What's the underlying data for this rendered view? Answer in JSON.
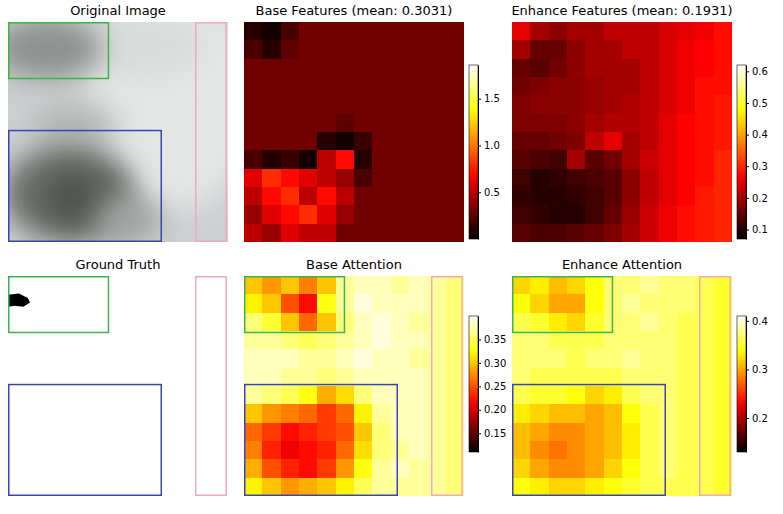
{
  "chart_data": [
    {
      "type": "image",
      "title": "Original Image"
    },
    {
      "type": "heatmap",
      "title": "Base Features (mean: 0.3031)",
      "cells": [
        [
          0.1,
          0.05,
          0.2,
          0.3,
          0.3,
          0.3,
          0.3,
          0.3,
          0.3,
          0.3,
          0.3,
          0.3
        ],
        [
          0.2,
          0.1,
          0.25,
          0.3,
          0.3,
          0.3,
          0.3,
          0.3,
          0.3,
          0.3,
          0.3,
          0.3
        ],
        [
          0.3,
          0.3,
          0.3,
          0.3,
          0.3,
          0.3,
          0.3,
          0.3,
          0.3,
          0.3,
          0.3,
          0.3
        ],
        [
          0.3,
          0.3,
          0.3,
          0.3,
          0.3,
          0.3,
          0.3,
          0.3,
          0.3,
          0.3,
          0.3,
          0.3
        ],
        [
          0.3,
          0.3,
          0.3,
          0.3,
          0.3,
          0.3,
          0.3,
          0.3,
          0.3,
          0.3,
          0.3,
          0.3
        ],
        [
          0.3,
          0.3,
          0.3,
          0.3,
          0.3,
          0.25,
          0.3,
          0.3,
          0.3,
          0.3,
          0.3,
          0.3
        ],
        [
          0.3,
          0.3,
          0.3,
          0.3,
          0.1,
          0.05,
          0.15,
          0.3,
          0.3,
          0.3,
          0.3,
          0.3
        ],
        [
          0.2,
          0.1,
          0.15,
          0.05,
          0.5,
          0.7,
          0.1,
          0.3,
          0.3,
          0.3,
          0.3,
          0.3
        ],
        [
          0.6,
          0.8,
          0.7,
          0.6,
          0.5,
          0.4,
          0.2,
          0.3,
          0.3,
          0.3,
          0.3,
          0.3
        ],
        [
          0.5,
          0.7,
          0.8,
          0.5,
          0.7,
          0.5,
          0.3,
          0.3,
          0.3,
          0.3,
          0.3,
          0.3
        ],
        [
          0.4,
          0.6,
          0.7,
          0.8,
          0.6,
          0.4,
          0.3,
          0.3,
          0.3,
          0.3,
          0.3,
          0.3
        ],
        [
          0.5,
          0.4,
          0.6,
          0.5,
          0.5,
          0.3,
          0.3,
          0.3,
          0.3,
          0.3,
          0.3,
          0.3
        ]
      ],
      "colorbar_range": [
        0,
        1.86
      ],
      "colorbar_ticks": [
        0.5,
        {
          "value": 1,
          "label": "1.0"
        },
        1.5
      ]
    },
    {
      "type": "heatmap",
      "title": "Enhance Features (mean: 0.1931)",
      "cells": [
        [
          0.25,
          0.2,
          0.18,
          0.2,
          0.2,
          0.22,
          0.22,
          0.22,
          0.24,
          0.25,
          0.26,
          0.28
        ],
        [
          0.2,
          0.15,
          0.15,
          0.18,
          0.2,
          0.2,
          0.22,
          0.22,
          0.24,
          0.26,
          0.27,
          0.28
        ],
        [
          0.15,
          0.14,
          0.16,
          0.18,
          0.2,
          0.2,
          0.2,
          0.22,
          0.24,
          0.26,
          0.27,
          0.28
        ],
        [
          0.16,
          0.17,
          0.18,
          0.18,
          0.19,
          0.2,
          0.2,
          0.22,
          0.24,
          0.26,
          0.28,
          0.28
        ],
        [
          0.17,
          0.18,
          0.18,
          0.18,
          0.19,
          0.2,
          0.21,
          0.22,
          0.24,
          0.26,
          0.28,
          0.29
        ],
        [
          0.17,
          0.17,
          0.17,
          0.18,
          0.2,
          0.21,
          0.21,
          0.22,
          0.25,
          0.27,
          0.28,
          0.29
        ],
        [
          0.15,
          0.15,
          0.16,
          0.17,
          0.22,
          0.25,
          0.2,
          0.22,
          0.25,
          0.27,
          0.28,
          0.29
        ],
        [
          0.14,
          0.13,
          0.12,
          0.2,
          0.14,
          0.16,
          0.2,
          0.23,
          0.25,
          0.27,
          0.28,
          0.3
        ],
        [
          0.12,
          0.1,
          0.11,
          0.12,
          0.13,
          0.14,
          0.18,
          0.22,
          0.25,
          0.27,
          0.28,
          0.3
        ],
        [
          0.11,
          0.1,
          0.1,
          0.11,
          0.12,
          0.14,
          0.18,
          0.22,
          0.25,
          0.27,
          0.29,
          0.3
        ],
        [
          0.12,
          0.11,
          0.1,
          0.1,
          0.12,
          0.15,
          0.19,
          0.23,
          0.26,
          0.28,
          0.29,
          0.3
        ],
        [
          0.14,
          0.13,
          0.13,
          0.14,
          0.15,
          0.17,
          0.2,
          0.23,
          0.26,
          0.28,
          0.29,
          0.3
        ]
      ],
      "colorbar_range": [
        0.07,
        0.62
      ],
      "colorbar_ticks": [
        0.1,
        0.2,
        0.3,
        0.4,
        0.5,
        0.6
      ]
    },
    {
      "type": "image",
      "title": "Ground Truth"
    },
    {
      "type": "heatmap",
      "title": "Base Attention",
      "cells": [
        [
          0.3,
          0.28,
          0.3,
          0.27,
          0.3,
          0.37,
          0.38,
          0.38,
          0.37,
          0.38,
          0.37,
          0.36
        ],
        [
          0.32,
          0.3,
          0.25,
          0.22,
          0.33,
          0.37,
          0.39,
          0.38,
          0.38,
          0.38,
          0.37,
          0.36
        ],
        [
          0.36,
          0.34,
          0.3,
          0.26,
          0.3,
          0.36,
          0.38,
          0.39,
          0.38,
          0.37,
          0.37,
          0.36
        ],
        [
          0.37,
          0.37,
          0.36,
          0.35,
          0.36,
          0.37,
          0.38,
          0.39,
          0.38,
          0.38,
          0.37,
          0.36
        ],
        [
          0.38,
          0.38,
          0.38,
          0.37,
          0.37,
          0.38,
          0.39,
          0.38,
          0.38,
          0.37,
          0.37,
          0.36
        ],
        [
          0.38,
          0.38,
          0.37,
          0.37,
          0.36,
          0.37,
          0.38,
          0.38,
          0.38,
          0.38,
          0.37,
          0.36
        ],
        [
          0.37,
          0.36,
          0.35,
          0.33,
          0.29,
          0.31,
          0.36,
          0.38,
          0.38,
          0.38,
          0.37,
          0.36
        ],
        [
          0.3,
          0.28,
          0.27,
          0.26,
          0.24,
          0.26,
          0.32,
          0.37,
          0.38,
          0.38,
          0.37,
          0.36
        ],
        [
          0.26,
          0.24,
          0.22,
          0.23,
          0.24,
          0.25,
          0.3,
          0.36,
          0.38,
          0.38,
          0.37,
          0.36
        ],
        [
          0.27,
          0.23,
          0.21,
          0.22,
          0.23,
          0.26,
          0.31,
          0.36,
          0.37,
          0.38,
          0.37,
          0.36
        ],
        [
          0.29,
          0.25,
          0.23,
          0.22,
          0.24,
          0.28,
          0.33,
          0.37,
          0.38,
          0.37,
          0.37,
          0.36
        ],
        [
          0.32,
          0.3,
          0.28,
          0.29,
          0.3,
          0.32,
          0.35,
          0.37,
          0.37,
          0.37,
          0.37,
          0.36
        ]
      ],
      "colorbar_range": [
        0.11,
        0.4
      ],
      "colorbar_ticks": [
        0.15,
        {
          "value": 0.2,
          "label": "0.20"
        },
        0.25,
        {
          "value": 0.3,
          "label": "0.30"
        },
        0.35
      ]
    },
    {
      "type": "heatmap",
      "title": "Enhance Attention",
      "cells": [
        [
          0.32,
          0.33,
          0.31,
          0.32,
          0.34,
          0.37,
          0.37,
          0.38,
          0.37,
          0.37,
          0.36,
          0.35
        ],
        [
          0.34,
          0.32,
          0.3,
          0.3,
          0.34,
          0.37,
          0.38,
          0.37,
          0.37,
          0.37,
          0.36,
          0.35
        ],
        [
          0.36,
          0.35,
          0.33,
          0.32,
          0.35,
          0.37,
          0.37,
          0.38,
          0.37,
          0.36,
          0.36,
          0.35
        ],
        [
          0.37,
          0.37,
          0.36,
          0.36,
          0.36,
          0.37,
          0.37,
          0.37,
          0.37,
          0.36,
          0.36,
          0.35
        ],
        [
          0.37,
          0.37,
          0.37,
          0.36,
          0.37,
          0.37,
          0.38,
          0.37,
          0.37,
          0.36,
          0.36,
          0.35
        ],
        [
          0.37,
          0.36,
          0.36,
          0.36,
          0.36,
          0.36,
          0.37,
          0.37,
          0.37,
          0.36,
          0.36,
          0.35
        ],
        [
          0.36,
          0.35,
          0.35,
          0.34,
          0.32,
          0.33,
          0.36,
          0.37,
          0.37,
          0.36,
          0.36,
          0.35
        ],
        [
          0.33,
          0.32,
          0.31,
          0.31,
          0.3,
          0.31,
          0.34,
          0.36,
          0.37,
          0.36,
          0.36,
          0.35
        ],
        [
          0.31,
          0.3,
          0.29,
          0.29,
          0.3,
          0.31,
          0.33,
          0.36,
          0.37,
          0.36,
          0.36,
          0.35
        ],
        [
          0.31,
          0.29,
          0.28,
          0.29,
          0.3,
          0.31,
          0.33,
          0.36,
          0.37,
          0.36,
          0.36,
          0.35
        ],
        [
          0.32,
          0.3,
          0.29,
          0.29,
          0.3,
          0.32,
          0.34,
          0.36,
          0.37,
          0.36,
          0.36,
          0.35
        ],
        [
          0.34,
          0.33,
          0.32,
          0.32,
          0.33,
          0.34,
          0.35,
          0.36,
          0.36,
          0.36,
          0.36,
          0.35
        ]
      ],
      "colorbar_range": [
        0.13,
        0.41
      ],
      "colorbar_ticks": [
        0.2,
        0.3,
        0.4
      ]
    }
  ]
}
